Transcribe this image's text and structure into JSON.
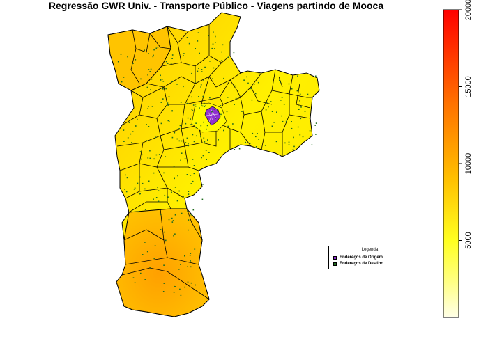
{
  "title": "Regressão GWR Univ. - Transporte Público - Viagens partindo de Mooca",
  "legend": {
    "title": "Legenda",
    "items": [
      {
        "label": "Endereços de Origem",
        "color": "#8B2BD0"
      },
      {
        "label": "Endereços de Destino",
        "color": "#1F6B1F"
      }
    ]
  },
  "colorbar": {
    "min": 0,
    "max": 20000,
    "ticks": [
      5000,
      10000,
      15000,
      20000
    ],
    "tick_labels": [
      "5000",
      "10000",
      "15000",
      "20000"
    ],
    "colors": [
      "#FFFFE0",
      "#FFFF40",
      "#FFD000",
      "#FFA000",
      "#FF6000",
      "#FF0000"
    ]
  },
  "map_colors": {
    "north": "#FFC000",
    "center": "#FFF000",
    "east": "#FFEE00",
    "south": "#FFA800",
    "border": "#000000",
    "destination": "#1F6B1F",
    "origin": "#8B2BD0"
  }
}
